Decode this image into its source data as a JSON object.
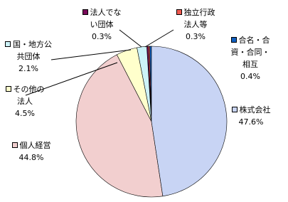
{
  "chart_data": {
    "type": "pie",
    "categories": [
      "株式会社",
      "個人経営",
      "その他の法人",
      "国・地方公共団体",
      "法人でない団体",
      "独立行政法人等",
      "合名・合資・合同・相互"
    ],
    "values": [
      47.6,
      44.8,
      4.5,
      2.1,
      0.3,
      0.3,
      0.4
    ],
    "value_labels": [
      "47.6%",
      "44.8%",
      "4.5%",
      "2.1%",
      "0.3%",
      "0.3%",
      "0.4%"
    ],
    "colors": [
      "#c8d4f4",
      "#f2cfcf",
      "#ffffcc",
      "#ccf2f8",
      "#7a0a5a",
      "#f05a50",
      "#1060c0"
    ]
  }
}
